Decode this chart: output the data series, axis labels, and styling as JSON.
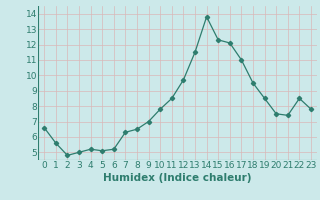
{
  "x": [
    0,
    1,
    2,
    3,
    4,
    5,
    6,
    7,
    8,
    9,
    10,
    11,
    12,
    13,
    14,
    15,
    16,
    17,
    18,
    19,
    20,
    21,
    22,
    23
  ],
  "y": [
    6.6,
    5.6,
    4.8,
    5.0,
    5.2,
    5.1,
    5.2,
    6.3,
    6.5,
    7.0,
    7.8,
    8.5,
    9.7,
    11.5,
    13.8,
    12.3,
    12.1,
    11.0,
    9.5,
    8.5,
    7.5,
    7.4,
    8.5,
    7.8
  ],
  "line_color": "#2e7d6e",
  "marker": "D",
  "marker_size": 2.2,
  "bg_color": "#cce9ea",
  "grid_color_minor": "#d9b8b8",
  "grid_color_major": "#c8a0a0",
  "xlabel": "Humidex (Indice chaleur)",
  "ylim": [
    4.5,
    14.5
  ],
  "xlim": [
    -0.5,
    23.5
  ],
  "yticks": [
    5,
    6,
    7,
    8,
    9,
    10,
    11,
    12,
    13,
    14
  ],
  "xticks": [
    0,
    1,
    2,
    3,
    4,
    5,
    6,
    7,
    8,
    9,
    10,
    11,
    12,
    13,
    14,
    15,
    16,
    17,
    18,
    19,
    20,
    21,
    22,
    23
  ],
  "xlabel_fontsize": 7.5,
  "tick_fontsize": 6.5
}
